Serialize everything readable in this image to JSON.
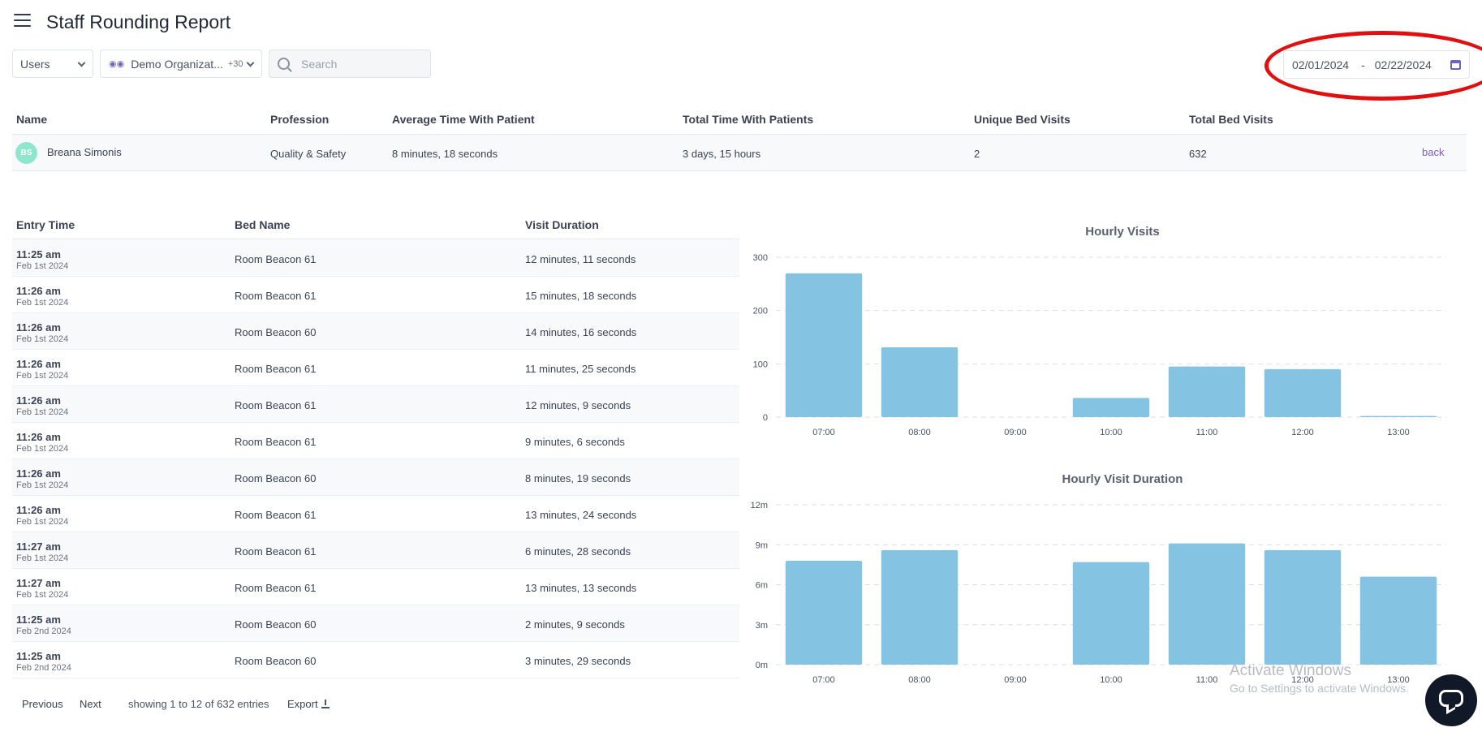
{
  "header": {
    "title": "Staff Rounding Report",
    "menu_icon": "hamburger-icon"
  },
  "filters": {
    "users": "Users",
    "organization": "Demo Organizat...",
    "organization_count": "+30",
    "search_placeholder": "Search"
  },
  "date_range": {
    "start": "02/01/2024",
    "separator": "-",
    "end": "02/22/2024"
  },
  "summary": {
    "headers": {
      "name": "Name",
      "profession": "Profession",
      "avg_time": "Average Time With Patient",
      "total_time": "Total Time With Patients",
      "unique_beds": "Unique Bed Visits",
      "total_beds": "Total Bed Visits"
    },
    "row": {
      "initials": "BS",
      "name": "Breana Simonis",
      "profession": "Quality & Safety",
      "avg_time": "8 minutes, 18 seconds",
      "total_time": "3 days, 15 hours",
      "unique_beds": "2",
      "total_beds": "632",
      "back": "back"
    }
  },
  "visits": {
    "headers": {
      "entry": "Entry Time",
      "bed": "Bed Name",
      "duration": "Visit Duration"
    },
    "rows": [
      {
        "time": "11:25 am",
        "date": "Feb 1st 2024",
        "bed": "Room Beacon 61",
        "duration": "12 minutes, 11 seconds"
      },
      {
        "time": "11:26 am",
        "date": "Feb 1st 2024",
        "bed": "Room Beacon 61",
        "duration": "15 minutes, 18 seconds"
      },
      {
        "time": "11:26 am",
        "date": "Feb 1st 2024",
        "bed": "Room Beacon 60",
        "duration": "14 minutes, 16 seconds"
      },
      {
        "time": "11:26 am",
        "date": "Feb 1st 2024",
        "bed": "Room Beacon 61",
        "duration": "11 minutes, 25 seconds"
      },
      {
        "time": "11:26 am",
        "date": "Feb 1st 2024",
        "bed": "Room Beacon 61",
        "duration": "12 minutes, 9 seconds"
      },
      {
        "time": "11:26 am",
        "date": "Feb 1st 2024",
        "bed": "Room Beacon 61",
        "duration": "9 minutes, 6 seconds"
      },
      {
        "time": "11:26 am",
        "date": "Feb 1st 2024",
        "bed": "Room Beacon 60",
        "duration": "8 minutes, 19 seconds"
      },
      {
        "time": "11:26 am",
        "date": "Feb 1st 2024",
        "bed": "Room Beacon 61",
        "duration": "13 minutes, 24 seconds"
      },
      {
        "time": "11:27 am",
        "date": "Feb 1st 2024",
        "bed": "Room Beacon 61",
        "duration": "6 minutes, 28 seconds"
      },
      {
        "time": "11:27 am",
        "date": "Feb 1st 2024",
        "bed": "Room Beacon 61",
        "duration": "13 minutes, 13 seconds"
      },
      {
        "time": "11:25 am",
        "date": "Feb 2nd 2024",
        "bed": "Room Beacon 60",
        "duration": "2 minutes, 9 seconds"
      },
      {
        "time": "11:25 am",
        "date": "Feb 2nd 2024",
        "bed": "Room Beacon 60",
        "duration": "3 minutes, 29 seconds"
      }
    ]
  },
  "pagination": {
    "previous": "Previous",
    "next": "Next",
    "info": "showing 1 to 12 of 632 entries",
    "export": "Export"
  },
  "chart_data": [
    {
      "type": "bar",
      "title": "Hourly Visits",
      "categories": [
        "07:00",
        "08:00",
        "09:00",
        "10:00",
        "11:00",
        "12:00",
        "13:00"
      ],
      "values": [
        270,
        131,
        0,
        36,
        95,
        90,
        2
      ],
      "yticks": [
        "0",
        "100",
        "200",
        "300"
      ],
      "ylim": [
        0,
        300
      ],
      "grid": true,
      "color": "#84c4e2"
    },
    {
      "type": "bar",
      "title": "Hourly Visit Duration",
      "categories": [
        "07:00",
        "08:00",
        "09:00",
        "10:00",
        "11:00",
        "12:00",
        "13:00"
      ],
      "values": [
        7.8,
        8.6,
        0,
        7.7,
        9.1,
        8.6,
        6.6
      ],
      "yticks": [
        "0m",
        "3m",
        "6m",
        "9m",
        "12m"
      ],
      "ylim": [
        0,
        12
      ],
      "grid": true,
      "color": "#84c4e2"
    }
  ],
  "watermark": {
    "line1": "Activate Windows",
    "line2": "Go to Settings to activate Windows."
  },
  "colors": {
    "accent": "#7b5cc9",
    "bar": "#84c4e2",
    "annotation": "#e01010",
    "avatar": "#8ee6cd"
  }
}
